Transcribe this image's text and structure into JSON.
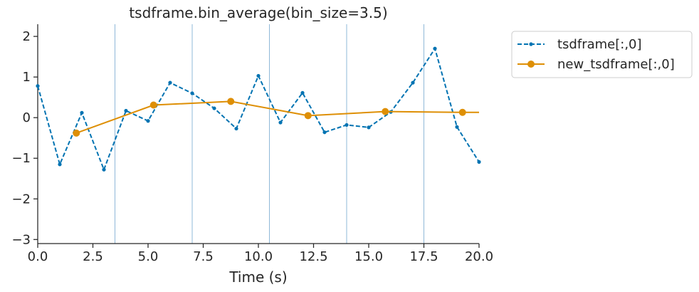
{
  "chart_data": {
    "type": "line",
    "title": "tsdframe.bin_average(bin_size=3.5)",
    "xlabel": "Time (s)",
    "ylabel": "",
    "xlim": [
      0,
      20
    ],
    "ylim": [
      -3.1,
      2.3
    ],
    "x_ticks": [
      0,
      2.5,
      5,
      7.5,
      10,
      12.5,
      15,
      17.5,
      20
    ],
    "x_tick_labels": [
      "0.0",
      "2.5",
      "5.0",
      "7.5",
      "10.0",
      "12.5",
      "15.0",
      "17.5",
      "20.0"
    ],
    "y_ticks": [
      -3,
      -2,
      -1,
      0,
      1,
      2
    ],
    "y_tick_labels": [
      "−3",
      "−2",
      "−1",
      "0",
      "1",
      "2"
    ],
    "bin_edges": [
      3.5,
      7.0,
      10.5,
      14.0,
      17.5
    ],
    "legend_position": "outside-top-right",
    "series": [
      {
        "name": "tsdframe[:,0]",
        "color": "#0173b2",
        "style": "dashed",
        "marker": "small-dot",
        "x": [
          0,
          1,
          2,
          3,
          4,
          5,
          6,
          7,
          8,
          9,
          10,
          11,
          12,
          13,
          14,
          15,
          16,
          17,
          18,
          19,
          20
        ],
        "values": [
          0.78,
          -1.15,
          0.12,
          -1.28,
          0.17,
          -0.08,
          0.86,
          0.6,
          0.23,
          -0.27,
          1.03,
          -0.12,
          0.61,
          -0.36,
          -0.18,
          -0.24,
          0.14,
          0.86,
          1.7,
          -0.23,
          -1.09
        ]
      },
      {
        "name": "new_tsdframe[:,0]",
        "color": "#de8f05",
        "style": "solid",
        "marker": "circle",
        "x": [
          1.75,
          5.25,
          8.75,
          12.25,
          15.75,
          19.25,
          20
        ],
        "values": [
          -0.38,
          0.31,
          0.4,
          0.05,
          0.15,
          0.13,
          0.13
        ],
        "marker_count": 6
      }
    ]
  }
}
